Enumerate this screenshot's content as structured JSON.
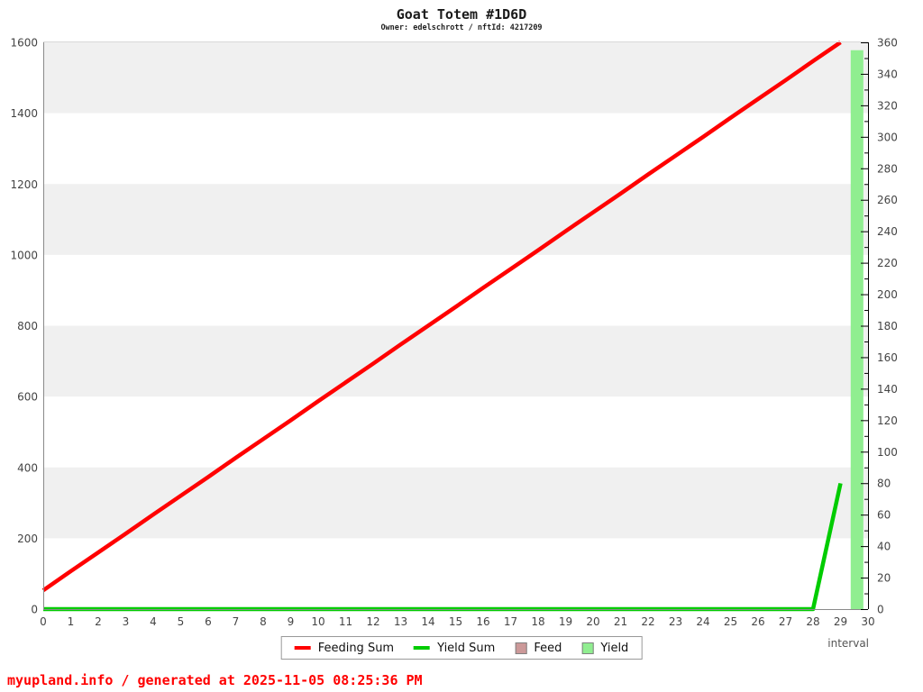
{
  "page": {
    "title": "Goat Totem #1D6D",
    "subtitle": "Owner: edelschrott / nftId: 4217209",
    "footer": "myupland.info / generated at 2025-11-05 08:25:36 PM"
  },
  "colors": {
    "feeding_sum_line": "#ff0000",
    "yield_sum_line": "#00cc00",
    "feed_fill": "#cc9999",
    "yield_fill": "#90ee90",
    "band_fill": "#f0f0f0",
    "left_spine": "#8a8a8a",
    "bottom_spine": "#8a8a8a",
    "top_spine": "#d9d9d9",
    "right_spine": "#000000",
    "tick_label": "#444444",
    "swatch_border": "#808080",
    "legend_border": "#999999",
    "footer_text": "#ff0000"
  },
  "legend": {
    "items": [
      {
        "label": "Feeding Sum",
        "swatch": "line",
        "color": "#ff0000"
      },
      {
        "label": "Yield Sum",
        "swatch": "line",
        "color": "#00cc00"
      },
      {
        "label": "Feed",
        "swatch": "box",
        "color": "#cc9999"
      },
      {
        "label": "Yield",
        "swatch": "box",
        "color": "#90ee90"
      }
    ]
  },
  "chart_data": {
    "type": "line+bar",
    "title": "Goat Totem #1D6D",
    "subtitle": "Owner: edelschrott / nftId: 4217209",
    "x_axis": {
      "label": "interval",
      "min": 0,
      "max": 30,
      "tick_step": 1
    },
    "left_axis": {
      "min": 0,
      "max": 1600,
      "tick_step": 200,
      "shaded_bands": [
        [
          200,
          400
        ],
        [
          600,
          800
        ],
        [
          1000,
          1200
        ],
        [
          1400,
          1600
        ]
      ],
      "band_color": "#f0f0f0"
    },
    "right_axis": {
      "min": 0,
      "max": 360,
      "tick_step": 20,
      "minor_step": 10,
      "major_tick_len": 8,
      "minor_tick_len": 4
    },
    "legend_position": "bottom-center",
    "series": [
      {
        "name": "Feeding Sum",
        "type": "line",
        "axis": "left",
        "color": "#ff0000",
        "width": 4.5,
        "x": [
          0,
          1,
          2,
          3,
          4,
          5,
          6,
          7,
          8,
          9,
          10,
          11,
          12,
          13,
          14,
          15,
          16,
          17,
          18,
          19,
          20,
          21,
          22,
          23,
          24,
          25,
          26,
          27,
          28,
          29
        ],
        "values": [
          53,
          107,
          160,
          213,
          267,
          320,
          373,
          427,
          480,
          533,
          587,
          640,
          693,
          747,
          800,
          853,
          907,
          960,
          1013,
          1067,
          1120,
          1173,
          1227,
          1280,
          1333,
          1387,
          1440,
          1493,
          1547,
          1600
        ]
      },
      {
        "name": "Yield Sum",
        "type": "line",
        "axis": "left",
        "color": "#00cc00",
        "width": 4.5,
        "x": [
          0,
          1,
          2,
          3,
          4,
          5,
          6,
          7,
          8,
          9,
          10,
          11,
          12,
          13,
          14,
          15,
          16,
          17,
          18,
          19,
          20,
          21,
          22,
          23,
          24,
          25,
          26,
          27,
          28,
          29
        ],
        "values": [
          0,
          0,
          0,
          0,
          0,
          0,
          0,
          0,
          0,
          0,
          0,
          0,
          0,
          0,
          0,
          0,
          0,
          0,
          0,
          0,
          0,
          0,
          0,
          0,
          0,
          0,
          0,
          0,
          0,
          355
        ]
      },
      {
        "name": "Feed",
        "type": "bar",
        "axis": "right",
        "color": "#cc9999",
        "bar_width": 0.46,
        "points": []
      },
      {
        "name": "Yield",
        "type": "bar",
        "axis": "right",
        "color": "#90ee90",
        "bar_width": 0.46,
        "points": [
          {
            "x": 29.6,
            "value": 355
          }
        ]
      }
    ]
  }
}
